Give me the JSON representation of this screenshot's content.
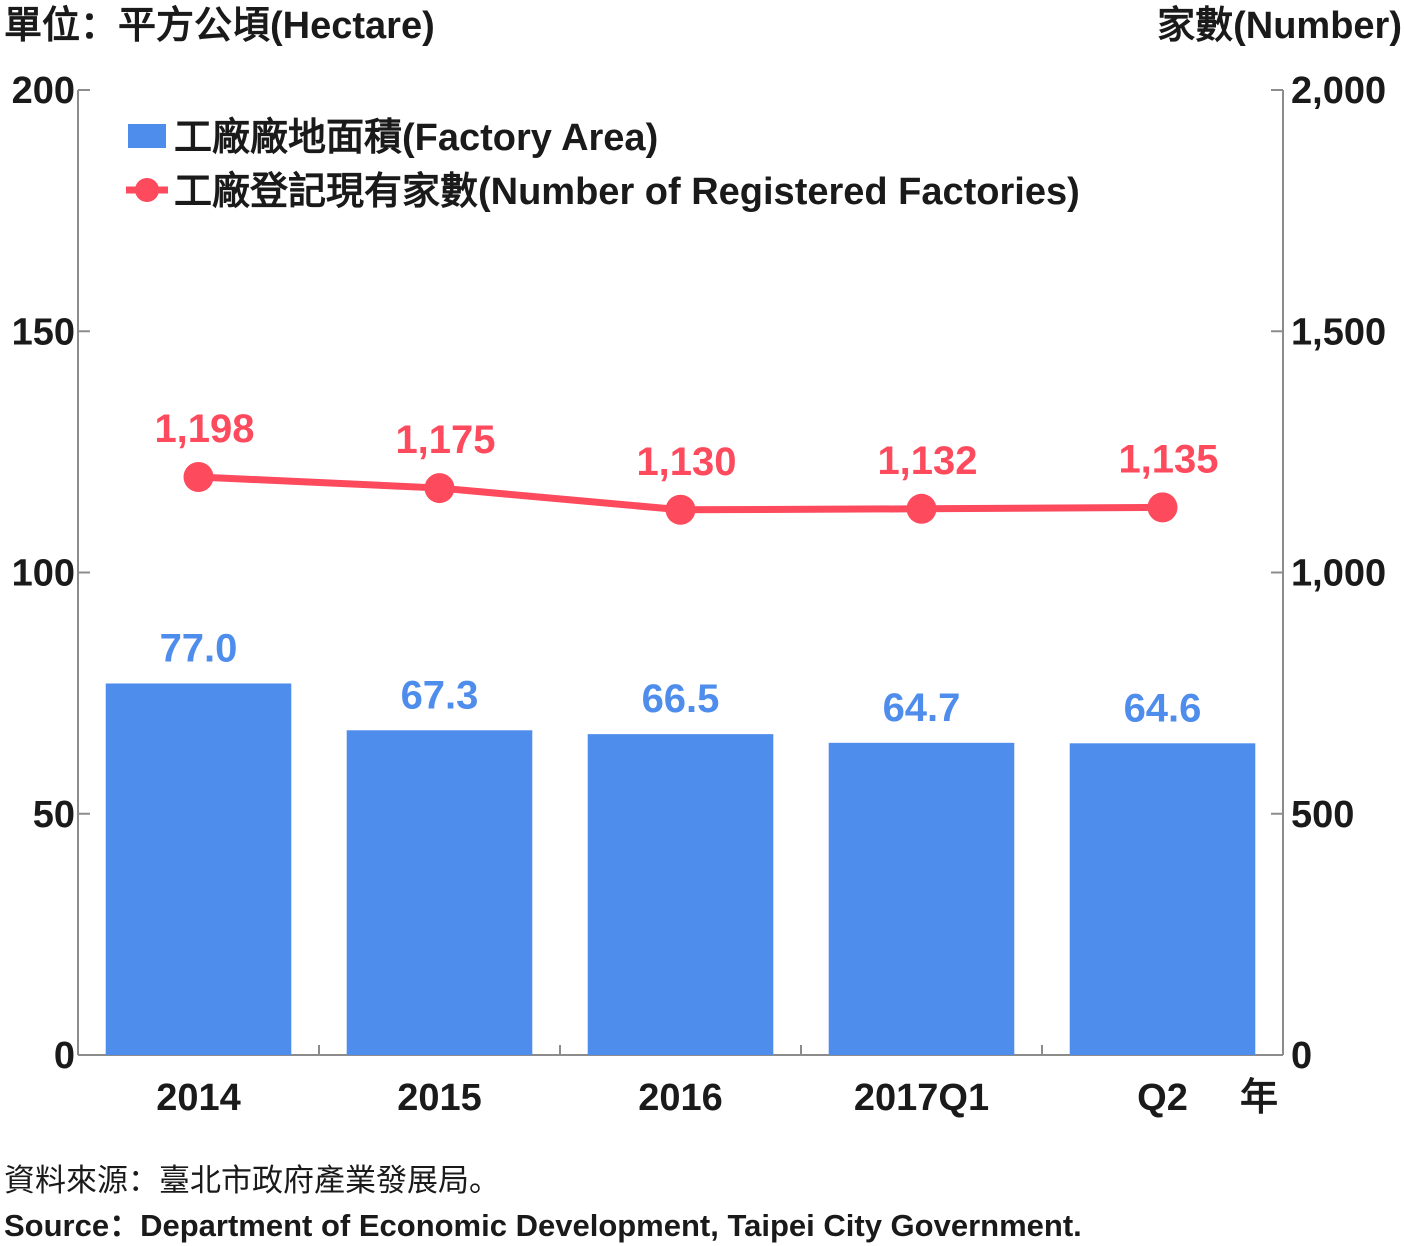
{
  "header": {
    "left_unit": "單位：平方公頃(Hectare)",
    "right_unit": "家數(Number)"
  },
  "chart_data": {
    "type": "bar",
    "categories": [
      "2014",
      "2015",
      "2016",
      "2017Q1",
      "Q2"
    ],
    "x_suffix": "年",
    "y_left": {
      "ylim": [
        0,
        200
      ],
      "ticks": [
        "0",
        "50",
        "100",
        "150",
        "200"
      ]
    },
    "y_right": {
      "ylim": [
        0,
        2000
      ],
      "ticks": [
        "0",
        "500",
        "1,000",
        "1,500",
        "2,000"
      ]
    },
    "series": [
      {
        "name": "工廠廠地面積(Factory Area)",
        "kind": "bar",
        "axis": "left",
        "values": [
          77.0,
          67.3,
          66.5,
          64.7,
          64.6
        ],
        "labels": [
          "77.0",
          "67.3",
          "66.5",
          "64.7",
          "64.6"
        ],
        "color": "#4f8dec"
      },
      {
        "name": "工廠登記現有家數(Number of Registered Factories)",
        "kind": "line",
        "axis": "right",
        "values": [
          1198,
          1175,
          1130,
          1132,
          1135
        ],
        "labels": [
          "1,198",
          "1,175",
          "1,130",
          "1,132",
          "1,135"
        ],
        "color": "#fd4a5d"
      }
    ],
    "grid": false,
    "legend_position": "top-left"
  },
  "footer": {
    "source_zh": "資料來源：臺北市政府產業發展局。",
    "source_en": "Source：Department of Economic Development, Taipei City Government."
  }
}
